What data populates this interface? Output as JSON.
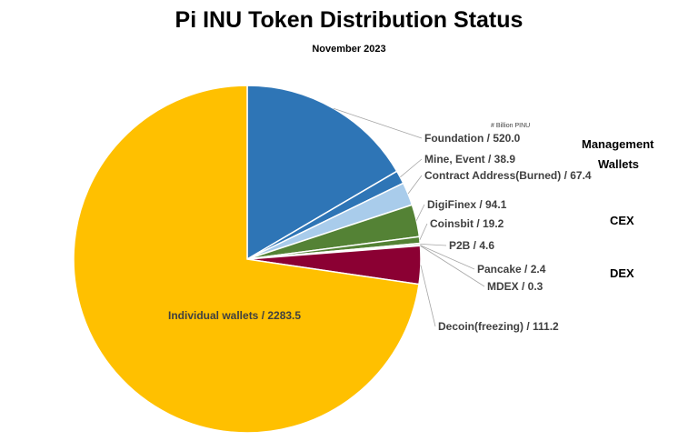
{
  "chart_data": {
    "type": "pie",
    "title": "Pi INU Token Distribution Status",
    "subtitle": "November 2023",
    "unit_note": "# Billion PINU",
    "slices": [
      {
        "label": "Foundation / 520.0",
        "value": 520.0,
        "color": "#2E75B6"
      },
      {
        "label": "Mine, Event / 38.9",
        "value": 38.9,
        "color": "#2E75B6"
      },
      {
        "label": "Contract Address(Burned) / 67.4",
        "value": 67.4,
        "color": "#A9CCEB"
      },
      {
        "label": "DigiFinex / 94.1",
        "value": 94.1,
        "color": "#548235"
      },
      {
        "label": "Coinsbit / 19.2",
        "value": 19.2,
        "color": "#548235"
      },
      {
        "label": "P2B / 4.6",
        "value": 4.6,
        "color": "#548235"
      },
      {
        "label": "Pancake / 2.4",
        "value": 2.4,
        "color": "#8B0033"
      },
      {
        "label": "MDEX / 0.3",
        "value": 0.3,
        "color": "#8B0033"
      },
      {
        "label": "Decoin(freezing) / 111.2",
        "value": 111.2,
        "color": "#8B0033"
      },
      {
        "label": "Individual wallets / 2283.5",
        "value": 2283.5,
        "color": "#FFC000"
      }
    ],
    "groups": [
      {
        "label": "Management",
        "members": [
          "Foundation / 520.0",
          "Mine, Event / 38.9",
          "Contract Address(Burned) / 67.4"
        ]
      },
      {
        "label": "Wallets",
        "members": []
      },
      {
        "label": "CEX",
        "members": [
          "DigiFinex / 94.1",
          "Coinsbit / 19.2",
          "P2B / 4.6"
        ]
      },
      {
        "label": "DEX",
        "members": [
          "Pancake / 2.4",
          "MDEX / 0.3",
          "Decoin(freezing) / 111.2"
        ]
      }
    ]
  }
}
